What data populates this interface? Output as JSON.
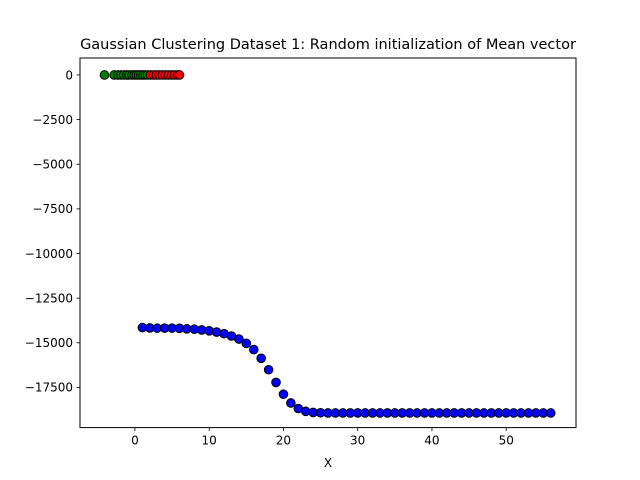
{
  "chart_data": {
    "type": "scatter",
    "title": "Gaussian Clustering Dataset 1: Random initialization of Mean vector",
    "xlabel": "X",
    "ylabel": "",
    "xlim": [
      -7.4,
      59.4
    ],
    "ylim": [
      -19750,
      950
    ],
    "xticks": [
      0,
      10,
      20,
      30,
      40,
      50
    ],
    "yticks": [
      0,
      -2500,
      -5000,
      -7500,
      -10000,
      -12500,
      -15000,
      -17500
    ],
    "xtick_labels": [
      "0",
      "10",
      "20",
      "30",
      "40",
      "50"
    ],
    "ytick_labels": [
      "0",
      "−2500",
      "−5000",
      "−7500",
      "−10000",
      "−12500",
      "−15000",
      "−17500"
    ],
    "grid": false,
    "marker_edge_color": "#000000",
    "series": [
      {
        "color": "#008000",
        "points": [
          [
            -4.1,
            0
          ],
          [
            -2.8,
            0
          ],
          [
            -2.3,
            0
          ],
          [
            -1.9,
            0
          ],
          [
            -1.5,
            0
          ],
          [
            -1.1,
            0
          ],
          [
            -0.8,
            0
          ],
          [
            -0.4,
            0
          ],
          [
            -0.1,
            0
          ],
          [
            0.2,
            0
          ],
          [
            0.5,
            0
          ],
          [
            0.8,
            0
          ],
          [
            1.1,
            0
          ],
          [
            1.4,
            0
          ],
          [
            1.7,
            0
          ]
        ]
      },
      {
        "color": "#ff0000",
        "points": [
          [
            2.1,
            0
          ],
          [
            2.5,
            0
          ],
          [
            2.9,
            0
          ],
          [
            3.3,
            0
          ],
          [
            3.7,
            0
          ],
          [
            4.1,
            0
          ],
          [
            4.5,
            0
          ],
          [
            4.9,
            0
          ],
          [
            5.3,
            0
          ],
          [
            5.7,
            0
          ],
          [
            6.0,
            0
          ]
        ]
      },
      {
        "color": "#0000ff",
        "points": [
          [
            1,
            -14150
          ],
          [
            2,
            -14170
          ],
          [
            3,
            -14180
          ],
          [
            4,
            -14180
          ],
          [
            5,
            -14180
          ],
          [
            6,
            -14190
          ],
          [
            7,
            -14220
          ],
          [
            8,
            -14240
          ],
          [
            9,
            -14280
          ],
          [
            10,
            -14330
          ],
          [
            11,
            -14400
          ],
          [
            12,
            -14490
          ],
          [
            13,
            -14620
          ],
          [
            14,
            -14790
          ],
          [
            15,
            -15030
          ],
          [
            16,
            -15380
          ],
          [
            17,
            -15870
          ],
          [
            18,
            -16510
          ],
          [
            19,
            -17220
          ],
          [
            20,
            -17880
          ],
          [
            21,
            -18370
          ],
          [
            22,
            -18680
          ],
          [
            23,
            -18840
          ],
          [
            24,
            -18900
          ],
          [
            25,
            -18920
          ],
          [
            26,
            -18930
          ],
          [
            27,
            -18930
          ],
          [
            28,
            -18930
          ],
          [
            29,
            -18930
          ],
          [
            30,
            -18930
          ],
          [
            31,
            -18930
          ],
          [
            32,
            -18930
          ],
          [
            33,
            -18930
          ],
          [
            34,
            -18930
          ],
          [
            35,
            -18930
          ],
          [
            36,
            -18930
          ],
          [
            37,
            -18930
          ],
          [
            38,
            -18930
          ],
          [
            39,
            -18930
          ],
          [
            40,
            -18930
          ],
          [
            41,
            -18930
          ],
          [
            42,
            -18930
          ],
          [
            43,
            -18930
          ],
          [
            44,
            -18930
          ],
          [
            45,
            -18930
          ],
          [
            46,
            -18930
          ],
          [
            47,
            -18930
          ],
          [
            48,
            -18930
          ],
          [
            49,
            -18930
          ],
          [
            50,
            -18930
          ],
          [
            51,
            -18930
          ],
          [
            52,
            -18930
          ],
          [
            53,
            -18930
          ],
          [
            54,
            -18930
          ],
          [
            55,
            -18930
          ],
          [
            56,
            -18930
          ]
        ]
      }
    ]
  }
}
